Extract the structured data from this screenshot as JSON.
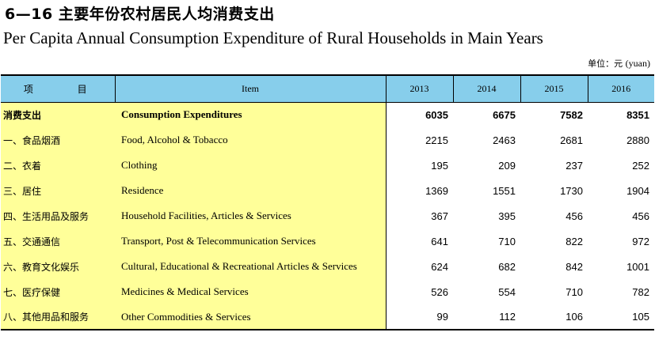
{
  "title_cn": "6—16 主要年份农村居民人均消费支出",
  "title_en": "Per Capita Annual Consumption Expenditure of Rural Households in Main Years",
  "unit": {
    "cn": "单位：元",
    "en": "(yuan)"
  },
  "header": {
    "item_cn": "项 目",
    "item_en": "Item",
    "years": [
      "2013",
      "2014",
      "2015",
      "2016"
    ]
  },
  "rows": [
    {
      "cn": "消费支出",
      "en": "Consumption Expenditures",
      "values": [
        "6035",
        "6675",
        "7582",
        "8351"
      ],
      "total": true
    },
    {
      "cn": "一、食品烟酒",
      "en": "Food, Alcohol & Tobacco",
      "values": [
        "2215",
        "2463",
        "2681",
        "2880"
      ]
    },
    {
      "cn": "二、衣着",
      "en": "Clothing",
      "values": [
        "195",
        "209",
        "237",
        "252"
      ]
    },
    {
      "cn": "三、居住",
      "en": "Residence",
      "values": [
        "1369",
        "1551",
        "1730",
        "1904"
      ]
    },
    {
      "cn": "四、生活用品及服务",
      "en": "Household Facilities, Articles & Services",
      "values": [
        "367",
        "395",
        "456",
        "456"
      ]
    },
    {
      "cn": "五、交通通信",
      "en": "Transport, Post & Telecommunication Services",
      "values": [
        "641",
        "710",
        "822",
        "972"
      ]
    },
    {
      "cn": "六、教育文化娱乐",
      "en": "Cultural, Educational & Recreational Articles & Services",
      "values": [
        "624",
        "682",
        "842",
        "1001"
      ]
    },
    {
      "cn": "七、医疗保健",
      "en": "Medicines & Medical Services",
      "values": [
        "526",
        "554",
        "710",
        "782"
      ]
    },
    {
      "cn": "八、其他用品和服务",
      "en": "Other Commodities & Services",
      "values": [
        "99",
        "112",
        "106",
        "105"
      ]
    }
  ]
}
